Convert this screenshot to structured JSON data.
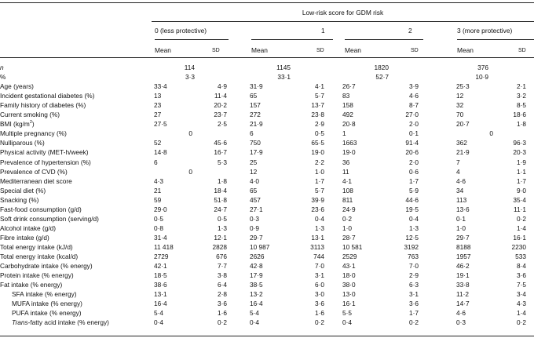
{
  "table": {
    "group_header": "Low-risk score for GDM risk",
    "score_columns": [
      "0 (less protective)",
      "1",
      "2",
      "3 (more protective)"
    ],
    "stat_labels": {
      "mean": "Mean",
      "sd": "SD"
    },
    "rows": [
      {
        "label": "n",
        "italic": true,
        "cells": [
          {
            "v": "114",
            "pos": "n"
          },
          {
            "v": "1145",
            "pos": "n"
          },
          {
            "v": "1820",
            "pos": "n"
          },
          {
            "v": "376",
            "pos": "n"
          }
        ]
      },
      {
        "label": "%",
        "cells": [
          {
            "v": "3·3",
            "pos": "n"
          },
          {
            "v": "33·1",
            "pos": "n"
          },
          {
            "v": "52·7",
            "pos": "n"
          },
          {
            "v": "10·9",
            "pos": "n"
          }
        ]
      },
      {
        "label": "Age (years)",
        "cells": [
          {
            "v": "33·4",
            "pos": "m"
          },
          {
            "v": "4·9",
            "pos": "s"
          },
          {
            "v": "31·9",
            "pos": "m"
          },
          {
            "v": "4·1",
            "pos": "s"
          },
          {
            "v": "26·7",
            "pos": "m"
          },
          {
            "v": "3·9",
            "pos": "s"
          },
          {
            "v": "25·3",
            "pos": "m"
          },
          {
            "v": "2·1",
            "pos": "s"
          }
        ]
      },
      {
        "label": "Incident gestational diabetes (%)",
        "cells": [
          {
            "v": "13",
            "pos": "m"
          },
          {
            "v": "11·4",
            "pos": "s"
          },
          {
            "v": "65",
            "pos": "m"
          },
          {
            "v": "5·7",
            "pos": "s"
          },
          {
            "v": "83",
            "pos": "m"
          },
          {
            "v": "4·6",
            "pos": "s"
          },
          {
            "v": "12",
            "pos": "m"
          },
          {
            "v": "3·2",
            "pos": "s"
          }
        ]
      },
      {
        "label": "Family history of diabetes (%)",
        "cells": [
          {
            "v": "23",
            "pos": "m"
          },
          {
            "v": "20·2",
            "pos": "s"
          },
          {
            "v": "157",
            "pos": "m"
          },
          {
            "v": "13·7",
            "pos": "s"
          },
          {
            "v": "158",
            "pos": "m"
          },
          {
            "v": "8·7",
            "pos": "s"
          },
          {
            "v": "32",
            "pos": "m"
          },
          {
            "v": "8·5",
            "pos": "s"
          }
        ]
      },
      {
        "label": "Current smoking (%)",
        "cells": [
          {
            "v": "27",
            "pos": "m"
          },
          {
            "v": "23·7",
            "pos": "s"
          },
          {
            "v": "272",
            "pos": "m"
          },
          {
            "v": "23·8",
            "pos": "s"
          },
          {
            "v": "492",
            "pos": "m"
          },
          {
            "v": "27·0",
            "pos": "s"
          },
          {
            "v": "70",
            "pos": "m"
          },
          {
            "v": "18·6",
            "pos": "s"
          }
        ]
      },
      {
        "label": "BMI (kg/m",
        "sup": "2",
        "label_tail": ")",
        "cells": [
          {
            "v": "27·5",
            "pos": "m"
          },
          {
            "v": "2·5",
            "pos": "s"
          },
          {
            "v": "21·9",
            "pos": "m"
          },
          {
            "v": "2·9",
            "pos": "s"
          },
          {
            "v": "20·8",
            "pos": "m"
          },
          {
            "v": "2·0",
            "pos": "s"
          },
          {
            "v": "20·7",
            "pos": "m"
          },
          {
            "v": "1·8",
            "pos": "s"
          }
        ]
      },
      {
        "label": "Multiple pregnancy (%)",
        "cells": [
          {
            "v": "0",
            "pos": "z"
          },
          {
            "v": "6",
            "pos": "m"
          },
          {
            "v": "0·5",
            "pos": "s"
          },
          {
            "v": "1",
            "pos": "m"
          },
          {
            "v": "0·1",
            "pos": "s"
          },
          {
            "v": "0",
            "pos": "z"
          }
        ]
      },
      {
        "label": "Nulliparous (%)",
        "cells": [
          {
            "v": "52",
            "pos": "m"
          },
          {
            "v": "45·6",
            "pos": "s"
          },
          {
            "v": "750",
            "pos": "m"
          },
          {
            "v": "65·5",
            "pos": "s"
          },
          {
            "v": "1663",
            "pos": "m"
          },
          {
            "v": "91·4",
            "pos": "s"
          },
          {
            "v": "362",
            "pos": "m"
          },
          {
            "v": "96·3",
            "pos": "s"
          }
        ]
      },
      {
        "label": "Physical activity (MET-h/week)",
        "cells": [
          {
            "v": "14·8",
            "pos": "m"
          },
          {
            "v": "16·7",
            "pos": "s"
          },
          {
            "v": "17·9",
            "pos": "m"
          },
          {
            "v": "19·0",
            "pos": "s"
          },
          {
            "v": "19·0",
            "pos": "m"
          },
          {
            "v": "20·6",
            "pos": "s"
          },
          {
            "v": "21·9",
            "pos": "m"
          },
          {
            "v": "20·3",
            "pos": "s"
          }
        ]
      },
      {
        "label": "Prevalence of hypertension (%)",
        "cells": [
          {
            "v": "6",
            "pos": "m"
          },
          {
            "v": "5·3",
            "pos": "s"
          },
          {
            "v": "25",
            "pos": "m"
          },
          {
            "v": "2·2",
            "pos": "s"
          },
          {
            "v": "36",
            "pos": "m"
          },
          {
            "v": "2·0",
            "pos": "s"
          },
          {
            "v": "7",
            "pos": "m"
          },
          {
            "v": "1·9",
            "pos": "s"
          }
        ]
      },
      {
        "label": "Prevalence of CVD (%)",
        "cells": [
          {
            "v": "0",
            "pos": "z"
          },
          {
            "v": "12",
            "pos": "m"
          },
          {
            "v": "1·0",
            "pos": "s"
          },
          {
            "v": "11",
            "pos": "m"
          },
          {
            "v": "0·6",
            "pos": "s"
          },
          {
            "v": "4",
            "pos": "m"
          },
          {
            "v": "1·1",
            "pos": "s"
          }
        ]
      },
      {
        "label": "Mediterranean diet score",
        "cells": [
          {
            "v": "4·3",
            "pos": "m"
          },
          {
            "v": "1·8",
            "pos": "s"
          },
          {
            "v": "4·0",
            "pos": "m"
          },
          {
            "v": "1·7",
            "pos": "s"
          },
          {
            "v": "4·1",
            "pos": "m"
          },
          {
            "v": "1·7",
            "pos": "s"
          },
          {
            "v": "4·6",
            "pos": "m"
          },
          {
            "v": "1·7",
            "pos": "s"
          }
        ]
      },
      {
        "label": "Special diet (%)",
        "cells": [
          {
            "v": "21",
            "pos": "m"
          },
          {
            "v": "18·4",
            "pos": "s"
          },
          {
            "v": "65",
            "pos": "m"
          },
          {
            "v": "5·7",
            "pos": "s"
          },
          {
            "v": "108",
            "pos": "m"
          },
          {
            "v": "5·9",
            "pos": "s"
          },
          {
            "v": "34",
            "pos": "m"
          },
          {
            "v": "9·0",
            "pos": "s"
          }
        ]
      },
      {
        "label": "Snacking (%)",
        "cells": [
          {
            "v": "59",
            "pos": "m"
          },
          {
            "v": "51·8",
            "pos": "s"
          },
          {
            "v": "457",
            "pos": "m"
          },
          {
            "v": "39·9",
            "pos": "s"
          },
          {
            "v": "811",
            "pos": "m"
          },
          {
            "v": "44·6",
            "pos": "s"
          },
          {
            "v": "113",
            "pos": "m"
          },
          {
            "v": "35·4",
            "pos": "s"
          }
        ]
      },
      {
        "label": "Fast-food consumption (g/d)",
        "cells": [
          {
            "v": "29·0",
            "pos": "m"
          },
          {
            "v": "24·7",
            "pos": "s"
          },
          {
            "v": "27·1",
            "pos": "m"
          },
          {
            "v": "23·6",
            "pos": "s"
          },
          {
            "v": "24·9",
            "pos": "m"
          },
          {
            "v": "19·5",
            "pos": "s"
          },
          {
            "v": "13·6",
            "pos": "m"
          },
          {
            "v": "11·1",
            "pos": "s"
          }
        ]
      },
      {
        "label": "Soft drink consumption (serving/d)",
        "cells": [
          {
            "v": "0·5",
            "pos": "m"
          },
          {
            "v": "0·5",
            "pos": "s"
          },
          {
            "v": "0·3",
            "pos": "m"
          },
          {
            "v": "0·4",
            "pos": "s"
          },
          {
            "v": "0·2",
            "pos": "m"
          },
          {
            "v": "0·4",
            "pos": "s"
          },
          {
            "v": "0·1",
            "pos": "m"
          },
          {
            "v": "0·2",
            "pos": "s"
          }
        ]
      },
      {
        "label": "Alcohol intake (g/d)",
        "cells": [
          {
            "v": "0·8",
            "pos": "m"
          },
          {
            "v": "1·3",
            "pos": "s"
          },
          {
            "v": "0·9",
            "pos": "m"
          },
          {
            "v": "1·3",
            "pos": "s"
          },
          {
            "v": "1·0",
            "pos": "m"
          },
          {
            "v": "1·3",
            "pos": "s"
          },
          {
            "v": "1·0",
            "pos": "m"
          },
          {
            "v": "1·4",
            "pos": "s"
          }
        ]
      },
      {
        "label": "Fibre intake (g/d)",
        "cells": [
          {
            "v": "31·4",
            "pos": "m"
          },
          {
            "v": "12·1",
            "pos": "s"
          },
          {
            "v": "29·7",
            "pos": "m"
          },
          {
            "v": "13·1",
            "pos": "s"
          },
          {
            "v": "28·7",
            "pos": "m"
          },
          {
            "v": "12·5",
            "pos": "s"
          },
          {
            "v": "29·7",
            "pos": "m"
          },
          {
            "v": "16·1",
            "pos": "s"
          }
        ]
      },
      {
        "label": "Total energy intake (kJ/d)",
        "cells": [
          {
            "v": "11 418",
            "pos": "m"
          },
          {
            "v": "2828",
            "pos": "s"
          },
          {
            "v": "10 987",
            "pos": "m"
          },
          {
            "v": "3113",
            "pos": "s"
          },
          {
            "v": "10 581",
            "pos": "m"
          },
          {
            "v": "3192",
            "pos": "s"
          },
          {
            "v": "8188",
            "pos": "m"
          },
          {
            "v": "2230",
            "pos": "s"
          }
        ]
      },
      {
        "label": "Total energy intake (kcal/d)",
        "cells": [
          {
            "v": "2729",
            "pos": "m"
          },
          {
            "v": "676",
            "pos": "s"
          },
          {
            "v": "2626",
            "pos": "m"
          },
          {
            "v": "744",
            "pos": "s"
          },
          {
            "v": "2529",
            "pos": "m"
          },
          {
            "v": "763",
            "pos": "s"
          },
          {
            "v": "1957",
            "pos": "m"
          },
          {
            "v": "533",
            "pos": "s"
          }
        ]
      },
      {
        "label": "Carbohydrate intake (% energy)",
        "cells": [
          {
            "v": "42·1",
            "pos": "m"
          },
          {
            "v": "7·7",
            "pos": "s"
          },
          {
            "v": "42·8",
            "pos": "m"
          },
          {
            "v": "7·0",
            "pos": "s"
          },
          {
            "v": "43·1",
            "pos": "m"
          },
          {
            "v": "7·0",
            "pos": "s"
          },
          {
            "v": "46·2",
            "pos": "m"
          },
          {
            "v": "8·4",
            "pos": "s"
          }
        ]
      },
      {
        "label": "Protein intake (% energy)",
        "cells": [
          {
            "v": "18·5",
            "pos": "m"
          },
          {
            "v": "3·8",
            "pos": "s"
          },
          {
            "v": "17·9",
            "pos": "m"
          },
          {
            "v": "3·1",
            "pos": "s"
          },
          {
            "v": "18·0",
            "pos": "m"
          },
          {
            "v": "2·9",
            "pos": "s"
          },
          {
            "v": "19·1",
            "pos": "m"
          },
          {
            "v": "3·6",
            "pos": "s"
          }
        ]
      },
      {
        "label": "Fat intake (% energy)",
        "cells": [
          {
            "v": "38·6",
            "pos": "m"
          },
          {
            "v": "6·4",
            "pos": "s"
          },
          {
            "v": "38·5",
            "pos": "m"
          },
          {
            "v": "6·0",
            "pos": "s"
          },
          {
            "v": "38·0",
            "pos": "m"
          },
          {
            "v": "6·3",
            "pos": "s"
          },
          {
            "v": "33·8",
            "pos": "m"
          },
          {
            "v": "7·5",
            "pos": "s"
          }
        ]
      },
      {
        "label": "SFA intake (% energy)",
        "indent": true,
        "cells": [
          {
            "v": "13·1",
            "pos": "m"
          },
          {
            "v": "2·8",
            "pos": "s"
          },
          {
            "v": "13·2",
            "pos": "m"
          },
          {
            "v": "3·0",
            "pos": "s"
          },
          {
            "v": "13·0",
            "pos": "m"
          },
          {
            "v": "3·1",
            "pos": "s"
          },
          {
            "v": "11·2",
            "pos": "m"
          },
          {
            "v": "3·4",
            "pos": "s"
          }
        ]
      },
      {
        "label": "MUFA intake (% energy)",
        "indent": true,
        "cells": [
          {
            "v": "16·4",
            "pos": "m"
          },
          {
            "v": "3·6",
            "pos": "s"
          },
          {
            "v": "16·4",
            "pos": "m"
          },
          {
            "v": "3·6",
            "pos": "s"
          },
          {
            "v": "16·1",
            "pos": "m"
          },
          {
            "v": "3·6",
            "pos": "s"
          },
          {
            "v": "14·7",
            "pos": "m"
          },
          {
            "v": "4·3",
            "pos": "s"
          }
        ]
      },
      {
        "label": "PUFA intake (% energy)",
        "indent": true,
        "cells": [
          {
            "v": "5·4",
            "pos": "m"
          },
          {
            "v": "1·6",
            "pos": "s"
          },
          {
            "v": "5·4",
            "pos": "m"
          },
          {
            "v": "1·6",
            "pos": "s"
          },
          {
            "v": "5·5",
            "pos": "m"
          },
          {
            "v": "1·7",
            "pos": "s"
          },
          {
            "v": "4·6",
            "pos": "m"
          },
          {
            "v": "1·4",
            "pos": "s"
          }
        ]
      },
      {
        "label": "Trans",
        "italic_part": true,
        "label_tail": "-fatty acid intake (% energy)",
        "indent": true,
        "cells": [
          {
            "v": "0·4",
            "pos": "m"
          },
          {
            "v": "0·2",
            "pos": "s"
          },
          {
            "v": "0·4",
            "pos": "m"
          },
          {
            "v": "0·2",
            "pos": "s"
          },
          {
            "v": "0·4",
            "pos": "m"
          },
          {
            "v": "0·2",
            "pos": "s"
          },
          {
            "v": "0·3",
            "pos": "m"
          },
          {
            "v": "0·2",
            "pos": "s"
          }
        ]
      }
    ]
  }
}
